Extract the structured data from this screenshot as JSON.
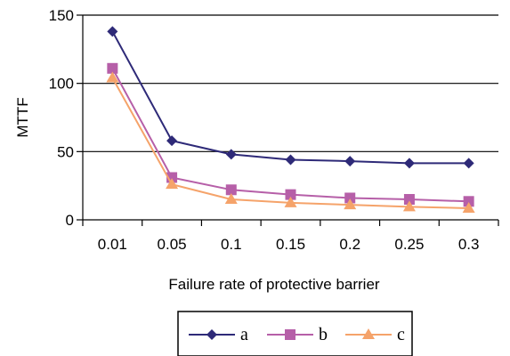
{
  "chart_data": {
    "type": "line",
    "title": "",
    "xlabel": "Failure rate  of protective barrier",
    "ylabel": "MTTF",
    "categories": [
      "0.01",
      "0.05",
      "0.1",
      "0.15",
      "0.2",
      "0.25",
      "0.3"
    ],
    "ylim": [
      0,
      150
    ],
    "yticks": [
      "0",
      "50",
      "100",
      "150"
    ],
    "grid": "horizontal major lines",
    "legend_position": "bottom",
    "series": [
      {
        "name": "a",
        "color": "#2e2a78",
        "marker": "diamond",
        "values": [
          138,
          58,
          48,
          44,
          43,
          41.5,
          41.5
        ]
      },
      {
        "name": "b",
        "color": "#b65fa8",
        "marker": "square",
        "values": [
          111,
          31,
          22,
          18.5,
          16,
          15,
          13.5
        ]
      },
      {
        "name": "c",
        "color": "#f5a36a",
        "marker": "triangle",
        "values": [
          104,
          26,
          15,
          12.5,
          11,
          9.5,
          8.5
        ]
      }
    ]
  }
}
